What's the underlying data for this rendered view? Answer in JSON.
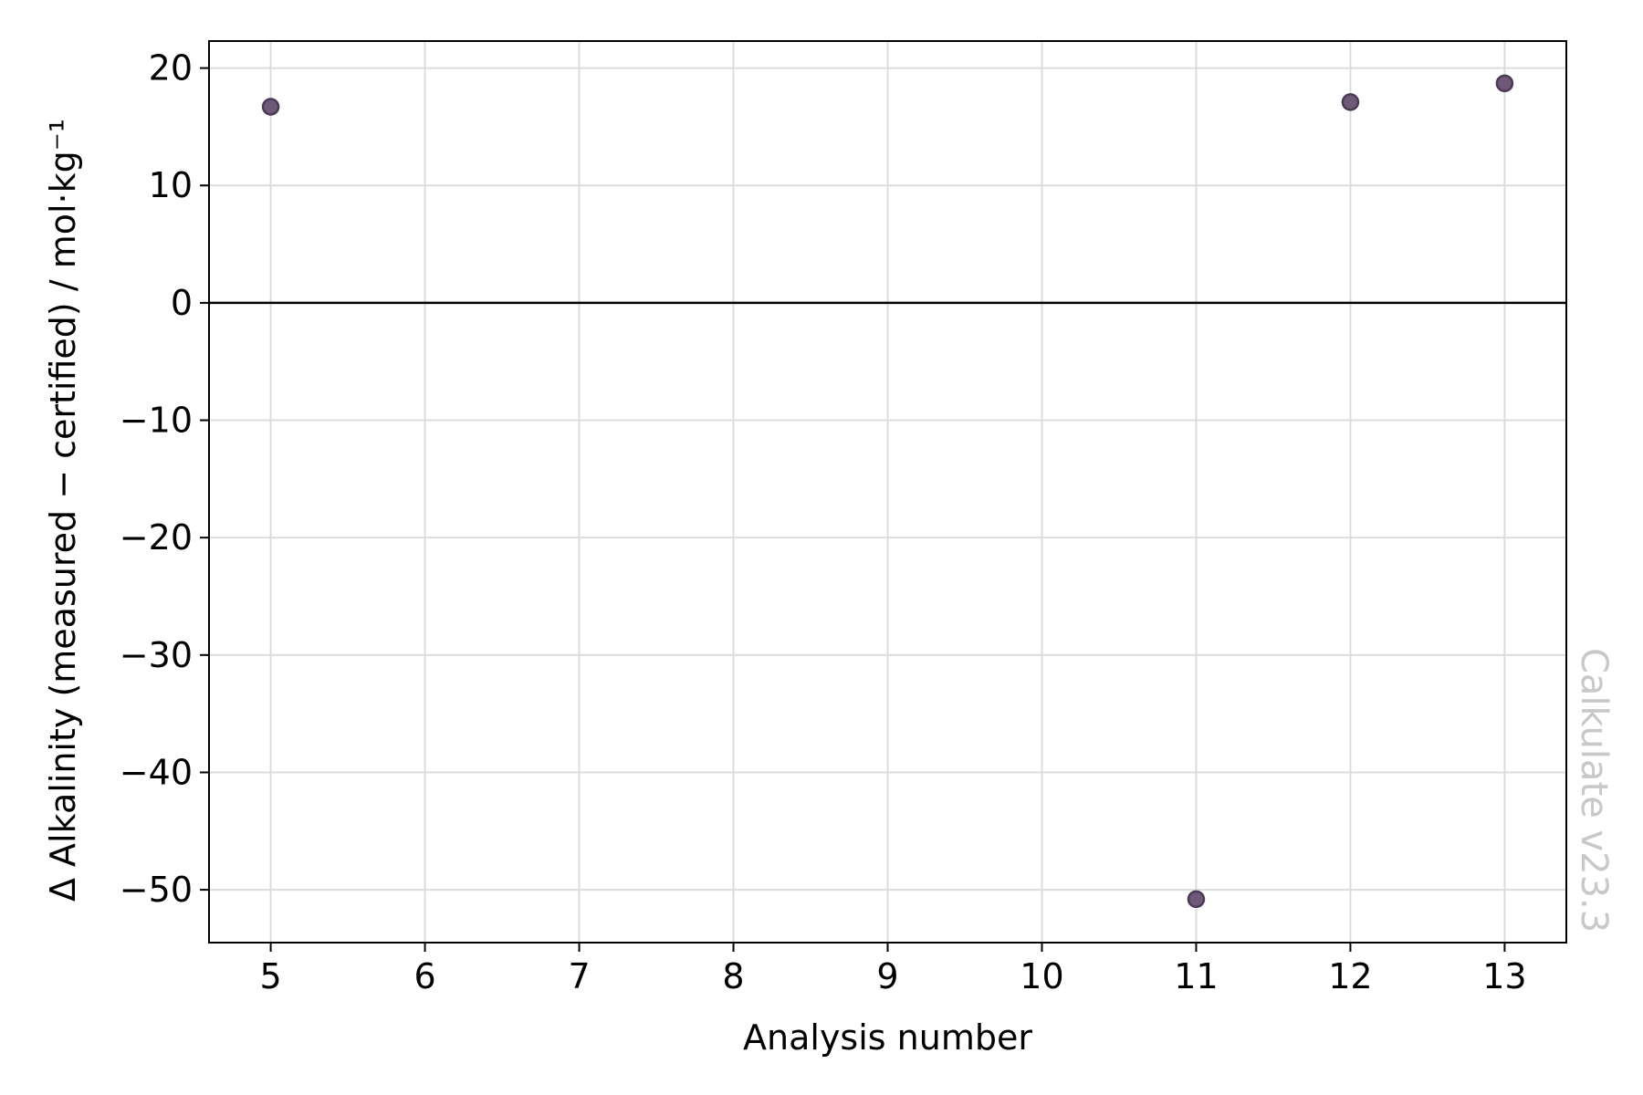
{
  "chart_data": {
    "type": "scatter",
    "title": "",
    "xlabel": "Analysis number",
    "ylabel": "Δ Alkalinity (measured − certified) / mol·kg⁻¹",
    "xlim": [
      4.6,
      13.4
    ],
    "ylim": [
      -54.5,
      22.3
    ],
    "x_ticks": [
      5,
      6,
      7,
      8,
      9,
      10,
      11,
      12,
      13
    ],
    "y_ticks": [
      20,
      10,
      0,
      -10,
      -20,
      -30,
      -40,
      -50
    ],
    "x_tick_labels": [
      "5",
      "6",
      "7",
      "8",
      "9",
      "10",
      "11",
      "12",
      "13"
    ],
    "y_tick_labels": [
      "20",
      "10",
      "0",
      "−10",
      "−20",
      "−30",
      "−40",
      "−50"
    ],
    "grid": true,
    "zero_line": 0,
    "series": [
      {
        "x": [
          5,
          11,
          12,
          13
        ],
        "y": [
          16.7,
          -50.8,
          17.1,
          18.7
        ]
      }
    ],
    "marker_color": "#6e5a78",
    "marker_edge_color": "#4a3a55",
    "watermark": "Calkulate v23.3",
    "watermark_color": "#c8c8c8"
  }
}
